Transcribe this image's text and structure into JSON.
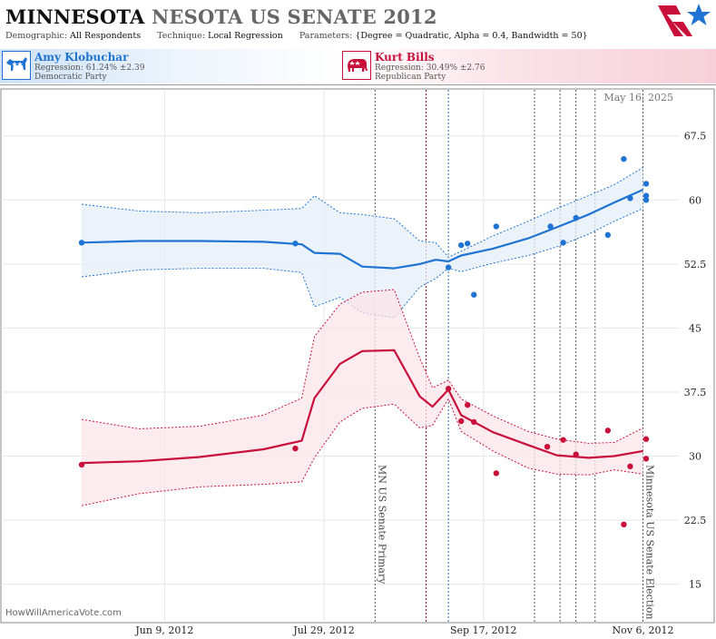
{
  "header": {
    "title_state": "MINNESOTA",
    "title_rest": "NESOTA US SENATE 2012",
    "demographic_label": "Demographic:",
    "demographic_value": "All Respondents",
    "technique_label": "Technique:",
    "technique_value": "Local Regression",
    "parameters_label": "Parameters:",
    "parameters_value": "{Degree = Quadratic, Alpha = 0.4, Bandwidth = 50}",
    "logo_icon": "star-flag-icon"
  },
  "candidates": [
    {
      "name": "Amy Klobuchar",
      "regression": "Regression: 61.24% ±2.39",
      "party": "Democratic Party",
      "icon": "donkey-icon",
      "color": "#1f74d3"
    },
    {
      "name": "Kurt Bills",
      "regression": "Regression: 30.49% ±2.76",
      "party": "Republican Party",
      "icon": "elephant-icon",
      "color": "#c9103a"
    }
  ],
  "chart_data": {
    "type": "line",
    "date_stamp": "May 16, 2025",
    "site_label": "HowWillAmericaVote.com",
    "x_ticks": [
      "Jun 9, 2012",
      "Jul 29, 2012",
      "Sep 17, 2012",
      "Nov 6, 2012"
    ],
    "y_ticks": [
      "67.5",
      "60",
      "52.5",
      "45",
      "37.5",
      "30",
      "22.5",
      "15"
    ],
    "ylim": [
      10.5,
      73
    ],
    "xlim": [
      "2012-05-14",
      "2012-11-09"
    ],
    "grid": true,
    "events": [
      {
        "label": "MN US Senate Primary",
        "date": "2012-08-14",
        "color": "#555",
        "style": "dotted"
      },
      {
        "label": "",
        "date": "2012-08-30",
        "color": "#9b1030",
        "style": "dotted"
      },
      {
        "label": "",
        "date": "2012-09-06",
        "color": "#2a6fa8",
        "style": "dotted"
      },
      {
        "label": "",
        "date": "2012-10-03",
        "color": "#555",
        "style": "dotted"
      },
      {
        "label": "",
        "date": "2012-10-11",
        "color": "#555",
        "style": "dotted"
      },
      {
        "label": "",
        "date": "2012-10-16",
        "color": "#555",
        "style": "dotted"
      },
      {
        "label": "",
        "date": "2012-10-22",
        "color": "#555",
        "style": "dotted"
      },
      {
        "label": "Minnesota US Senate Election",
        "date": "2012-11-06",
        "color": "#555",
        "style": "dotted"
      }
    ],
    "series": [
      {
        "name": "Amy Klobuchar",
        "color": "#1f74d3",
        "band_color": "#e6eef8",
        "trend_x": [
          "2012-05-14",
          "2012-06-01",
          "2012-06-20",
          "2012-07-10",
          "2012-07-22",
          "2012-07-26",
          "2012-08-03",
          "2012-08-10",
          "2012-08-20",
          "2012-08-28",
          "2012-09-02",
          "2012-09-06",
          "2012-09-10",
          "2012-09-20",
          "2012-10-01",
          "2012-10-10",
          "2012-10-20",
          "2012-10-28",
          "2012-11-06"
        ],
        "trend_y": [
          55.0,
          55.2,
          55.2,
          55.1,
          54.8,
          53.8,
          53.7,
          52.2,
          52.0,
          52.5,
          53.0,
          52.8,
          53.5,
          54.3,
          55.5,
          56.8,
          58.3,
          59.7,
          61.2
        ],
        "upper_y": [
          59.5,
          58.7,
          58.5,
          58.8,
          59.0,
          60.5,
          58.5,
          58.3,
          57.8,
          55.2,
          55.0,
          53.3,
          54.0,
          55.8,
          57.5,
          59.0,
          60.5,
          61.8,
          63.8
        ],
        "lower_y": [
          51.0,
          51.8,
          52.0,
          52.0,
          51.5,
          47.5,
          48.6,
          46.8,
          46.2,
          49.8,
          50.8,
          52.0,
          51.6,
          52.6,
          53.5,
          54.5,
          56.0,
          57.5,
          59.0
        ],
        "points_x": [
          "2012-05-14",
          "2012-07-20",
          "2012-09-06",
          "2012-09-10",
          "2012-09-12",
          "2012-09-14",
          "2012-09-21",
          "2012-10-08",
          "2012-10-12",
          "2012-10-16",
          "2012-10-26",
          "2012-10-31",
          "2012-11-02",
          "2012-11-07",
          "2012-11-07",
          "2012-11-07"
        ],
        "points_y": [
          55.0,
          54.9,
          52.1,
          54.7,
          54.9,
          48.9,
          56.9,
          56.9,
          55.0,
          57.9,
          55.9,
          64.8,
          60.2,
          61.9,
          60.5,
          60.0
        ]
      },
      {
        "name": "Kurt Bills",
        "color": "#c9103a",
        "band_color": "#fbe4ea",
        "trend_x": [
          "2012-05-14",
          "2012-06-01",
          "2012-06-20",
          "2012-07-10",
          "2012-07-22",
          "2012-07-26",
          "2012-08-03",
          "2012-08-10",
          "2012-08-20",
          "2012-08-28",
          "2012-09-01",
          "2012-09-06",
          "2012-09-10",
          "2012-09-20",
          "2012-10-01",
          "2012-10-10",
          "2012-10-20",
          "2012-10-28",
          "2012-11-06"
        ],
        "trend_y": [
          29.2,
          29.4,
          29.9,
          30.8,
          31.8,
          36.8,
          40.8,
          42.3,
          42.4,
          37.0,
          35.8,
          37.8,
          34.8,
          32.8,
          31.3,
          30.1,
          29.8,
          30.0,
          30.6
        ],
        "upper_y": [
          34.3,
          33.2,
          33.5,
          34.8,
          36.8,
          44.0,
          47.8,
          49.2,
          49.5,
          41.5,
          38.0,
          38.9,
          36.7,
          34.7,
          32.9,
          32.0,
          31.5,
          31.6,
          33.3
        ],
        "lower_y": [
          24.2,
          25.6,
          26.4,
          26.7,
          27.0,
          29.8,
          34.0,
          35.6,
          36.1,
          33.3,
          33.6,
          36.7,
          32.9,
          30.6,
          28.6,
          27.9,
          27.8,
          28.4,
          27.9
        ],
        "points_x": [
          "2012-05-14",
          "2012-07-20",
          "2012-09-06",
          "2012-09-10",
          "2012-09-12",
          "2012-09-14",
          "2012-09-21",
          "2012-10-07",
          "2012-10-12",
          "2012-10-16",
          "2012-10-26",
          "2012-10-31",
          "2012-11-02",
          "2012-11-07",
          "2012-11-07"
        ],
        "points_y": [
          29.0,
          30.9,
          37.9,
          34.1,
          36.0,
          34.0,
          28.0,
          31.1,
          31.9,
          30.2,
          33.0,
          22.0,
          28.8,
          32.0,
          29.7
        ]
      }
    ]
  }
}
